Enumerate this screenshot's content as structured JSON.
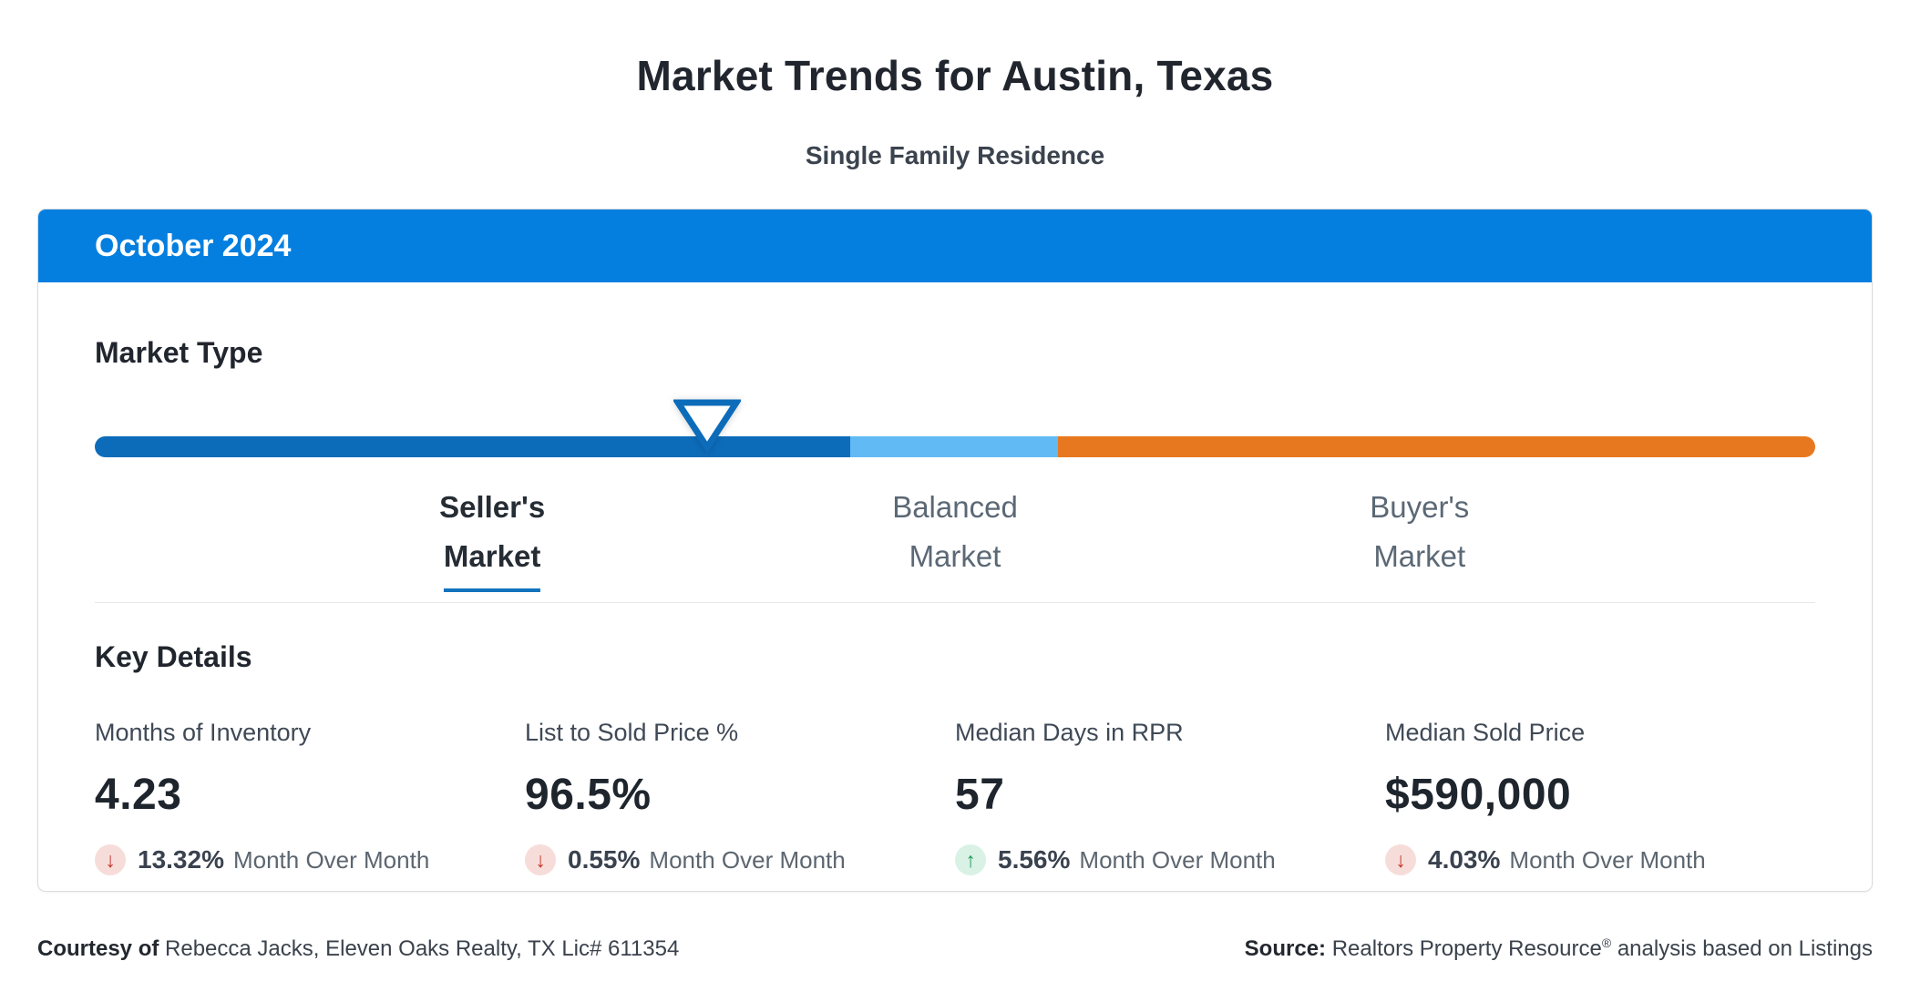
{
  "page": {
    "title": "Market Trends for Austin, Texas",
    "subtitle": "Single Family Residence"
  },
  "card": {
    "period": "October 2024",
    "market_type": {
      "heading": "Market Type",
      "marker": {
        "position_pct": 35.6,
        "icon": "down-pointer-triangle"
      },
      "segments": [
        {
          "name": "sellers-zone",
          "color": "#0d6cba",
          "width_pct": 43.9
        },
        {
          "name": "balanced-zone",
          "color": "#62baf5",
          "width_pct": 12.1
        },
        {
          "name": "buyers-zone",
          "color": "#e8781f",
          "width_pct": 44.0
        }
      ],
      "labels": [
        {
          "line1": "Seller's",
          "line2": "Market",
          "active": true,
          "position_pct": 23.1
        },
        {
          "line1": "Balanced",
          "line2": "Market",
          "active": false,
          "position_pct": 50.0
        },
        {
          "line1": "Buyer's",
          "line2": "Market",
          "active": false,
          "position_pct": 77.0
        }
      ]
    },
    "key_details": {
      "heading": "Key Details",
      "stats": [
        {
          "label": "Months of Inventory",
          "value": "4.23",
          "change": "13.32%",
          "direction": "down",
          "period": "Month Over Month"
        },
        {
          "label": "List to Sold Price %",
          "value": "96.5%",
          "change": "0.55%",
          "direction": "down",
          "period": "Month Over Month"
        },
        {
          "label": "Median Days in RPR",
          "value": "57",
          "change": "5.56%",
          "direction": "up",
          "period": "Month Over Month"
        },
        {
          "label": "Median Sold Price",
          "value": "$590,000",
          "change": "4.03%",
          "direction": "down",
          "period": "Month Over Month"
        }
      ]
    }
  },
  "footer": {
    "courtesy_label": "Courtesy of",
    "courtesy_text": "Rebecca Jacks, Eleven Oaks Realty, TX Lic# 611354",
    "source_label": "Source:",
    "source_name": "Realtors Property Resource",
    "source_reg": "®",
    "source_text": "analysis based on Listings"
  },
  "icons": {
    "up_arrow": "↑",
    "down_arrow": "↓"
  },
  "colors": {
    "header-blue": "#047fe0",
    "seller-blue": "#0d6cba",
    "balanced-blue": "#62baf5",
    "buyer-orange": "#e8781f",
    "active-underline": "#1173bc",
    "down-red": "#c13a2d",
    "down-bg": "#f7ddd9",
    "up-green": "#279a5d",
    "up-bg": "#d9f2e5"
  }
}
